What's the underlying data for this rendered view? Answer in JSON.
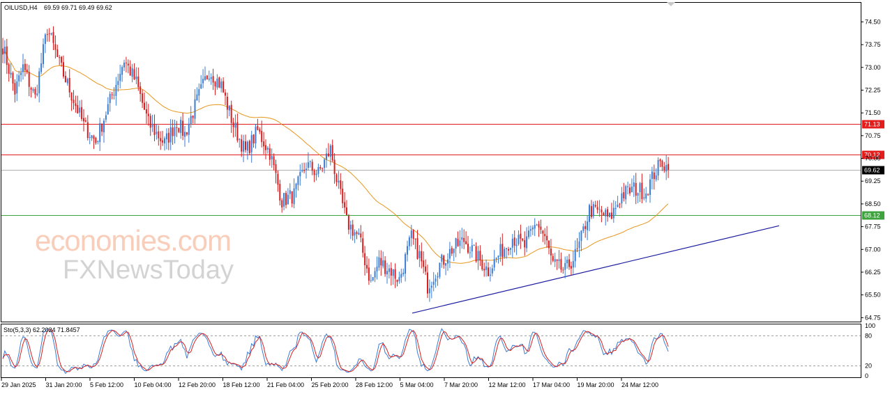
{
  "chart_data": {
    "type": "candlestick",
    "header": {
      "symbol": "OILUSD,H4",
      "ohlc": "69.59 69.71 69.49 69.62"
    },
    "price_axis": {
      "ylim": [
        64.62,
        75.13
      ],
      "ticks": [
        "74.50",
        "73.75",
        "73.00",
        "72.25",
        "71.50",
        "70.75",
        "70.00",
        "69.25",
        "68.50",
        "67.75",
        "67.00",
        "66.25",
        "65.50",
        "64.75"
      ]
    },
    "time_axis": {
      "ticks": [
        "29 Jan 2025",
        "31 Jan 20:00",
        "5 Feb 12:00",
        "10 Feb 04:00",
        "12 Feb 20:00",
        "18 Feb 12:00",
        "21 Feb 04:00",
        "25 Feb 20:00",
        "28 Feb 12:00",
        "5 Mar 04:00",
        "7 Mar 20:00",
        "12 Mar 12:00",
        "17 Mar 04:00",
        "19 Mar 20:00",
        "24 Mar 12:00"
      ]
    },
    "horizontal_levels": [
      {
        "label": "71.13",
        "value": 71.13,
        "color": "#e31c1c"
      },
      {
        "label": "70.12",
        "value": 70.12,
        "color": "#e31c1c"
      },
      {
        "label": "69.62",
        "value": 69.62,
        "color": "#b0b0b0"
      },
      {
        "label": "68.12",
        "value": 68.12,
        "color": "#3da33d"
      }
    ],
    "trendline": {
      "color": "#1a1aa0",
      "points": [
        {
          "bar": 0,
          "price": 64.9
        },
        {
          "bar": 150,
          "price": 67.78
        }
      ]
    },
    "ma_color": "#e8961e",
    "candle_up_color": "#3a7bd5",
    "candle_down_color": "#d81e1e",
    "price_path": [
      [
        0,
        73.7
      ],
      [
        6,
        72.2
      ],
      [
        10,
        73.0
      ],
      [
        16,
        72.0
      ],
      [
        22,
        74.3
      ],
      [
        28,
        73.1
      ],
      [
        34,
        72.1
      ],
      [
        40,
        71.1
      ],
      [
        46,
        70.55
      ],
      [
        52,
        71.7
      ],
      [
        60,
        73.25
      ],
      [
        66,
        72.5
      ],
      [
        72,
        71.15
      ],
      [
        80,
        70.5
      ],
      [
        86,
        71.2
      ],
      [
        90,
        70.8
      ],
      [
        96,
        71.9
      ],
      [
        102,
        72.9
      ],
      [
        108,
        72.4
      ],
      [
        114,
        71.1
      ],
      [
        120,
        70.2
      ],
      [
        126,
        70.9
      ],
      [
        132,
        70.2
      ],
      [
        138,
        68.6
      ],
      [
        144,
        68.8
      ],
      [
        150,
        69.8
      ],
      [
        156,
        69.5
      ],
      [
        162,
        70.3
      ],
      [
        166,
        69.0
      ],
      [
        170,
        67.9
      ],
      [
        176,
        67.4
      ],
      [
        182,
        65.9
      ],
      [
        186,
        66.6
      ],
      [
        192,
        66.3
      ],
      [
        196,
        66.0
      ],
      [
        202,
        67.4
      ],
      [
        206,
        66.8
      ],
      [
        210,
        65.8
      ],
      [
        216,
        66.5
      ],
      [
        222,
        67.0
      ],
      [
        228,
        67.3
      ],
      [
        234,
        66.8
      ],
      [
        240,
        66.3
      ],
      [
        246,
        66.9
      ],
      [
        252,
        67.4
      ],
      [
        258,
        67.1
      ],
      [
        264,
        67.9
      ],
      [
        268,
        67.4
      ],
      [
        272,
        66.5
      ],
      [
        278,
        66.3
      ],
      [
        284,
        66.9
      ],
      [
        290,
        68.3
      ],
      [
        296,
        68.2
      ],
      [
        300,
        68.0
      ],
      [
        306,
        68.8
      ],
      [
        312,
        69.0
      ],
      [
        318,
        68.9
      ],
      [
        322,
        69.5
      ],
      [
        326,
        69.9
      ],
      [
        329,
        69.62
      ]
    ],
    "stochastic": {
      "label": "Sto(5,3,3) 62.2024 71.8457",
      "ticks": [
        "100",
        "80",
        "20",
        "0"
      ],
      "k_color": "#3a7bd5",
      "d_color": "#d81e1e",
      "level_color": "#9a9a9a"
    }
  },
  "watermark": {
    "line1": "economies.com",
    "line2": "FXNewsToday"
  }
}
